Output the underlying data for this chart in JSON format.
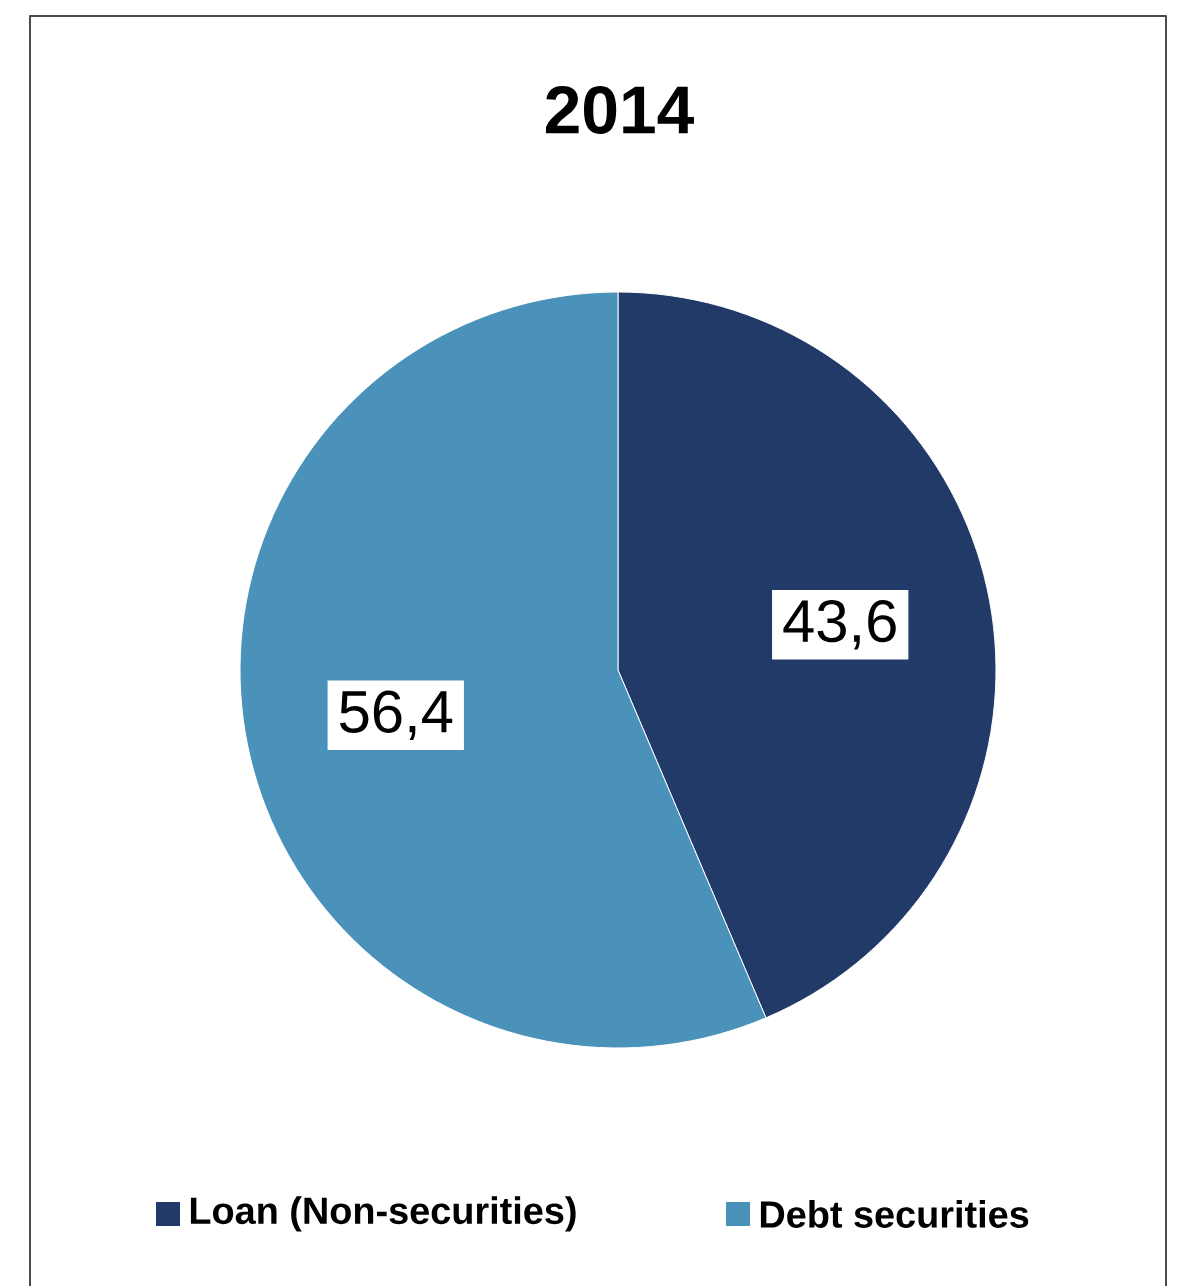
{
  "chart_data": {
    "type": "pie",
    "title": "2014",
    "categories": [
      "Loan (Non-securities)",
      "Debt securities"
    ],
    "values": [
      43.6,
      56.4
    ],
    "value_labels": [
      "43,6",
      "56,4"
    ],
    "colors": [
      "#213a68",
      "#4a92b9"
    ],
    "legend": "bottom"
  }
}
